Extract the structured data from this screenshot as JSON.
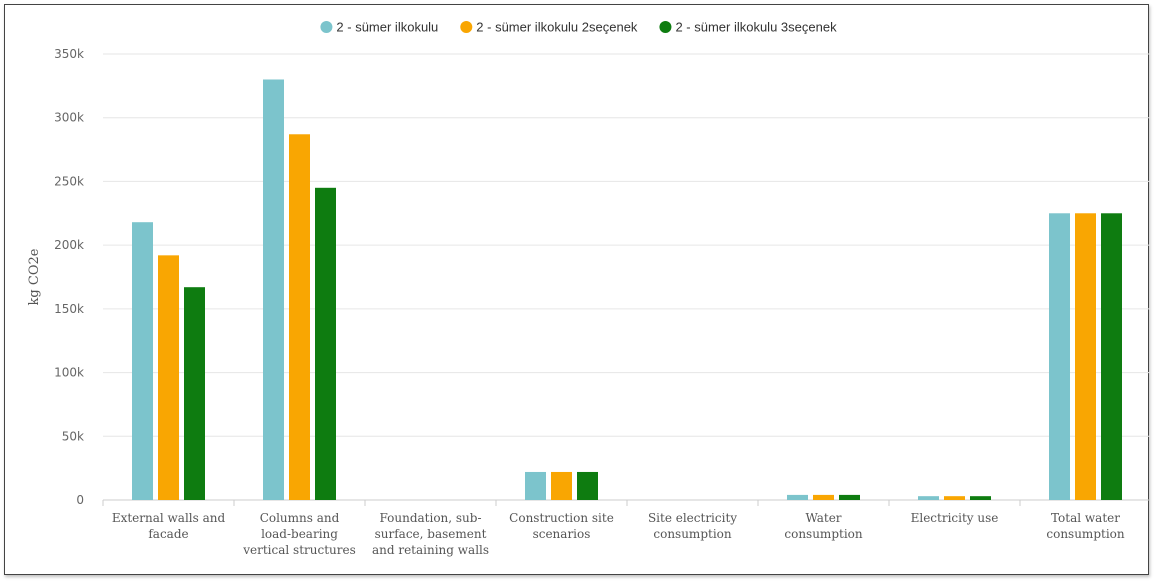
{
  "chart_data": {
    "type": "bar",
    "ylabel": "kg CO2e",
    "ylim": [
      0,
      350000
    ],
    "yticks": [
      0,
      50000,
      100000,
      150000,
      200000,
      250000,
      300000,
      350000
    ],
    "ytick_labels": [
      "0",
      "50k",
      "100k",
      "150k",
      "200k",
      "250k",
      "300k",
      "350k"
    ],
    "grid": true,
    "legend_position": "top-center",
    "categories": [
      [
        "External walls and",
        "facade"
      ],
      [
        "Columns and",
        "load-bearing",
        "vertical structures"
      ],
      [
        "Foundation, sub-",
        "surface, basement",
        "and retaining walls"
      ],
      [
        "Construction site",
        "scenarios"
      ],
      [
        "Site electricity",
        "consumption"
      ],
      [
        "Water",
        "consumption"
      ],
      [
        "Electricity use"
      ],
      [
        "Total water",
        "consumption"
      ]
    ],
    "series": [
      {
        "name": "2 - sümer ilkokulu",
        "color": "#7cc4cc",
        "values": [
          218000,
          330000,
          0,
          22000,
          0,
          4000,
          3000,
          225000
        ]
      },
      {
        "name": "2 - sümer ilkokulu 2seçenek",
        "color": "#f9a602",
        "values": [
          192000,
          287000,
          0,
          22000,
          0,
          4000,
          3000,
          225000
        ]
      },
      {
        "name": "2 - sümer ilkokulu 3seçenek",
        "color": "#0e7c10",
        "values": [
          167000,
          245000,
          0,
          22000,
          0,
          4000,
          3000,
          225000
        ]
      }
    ]
  }
}
